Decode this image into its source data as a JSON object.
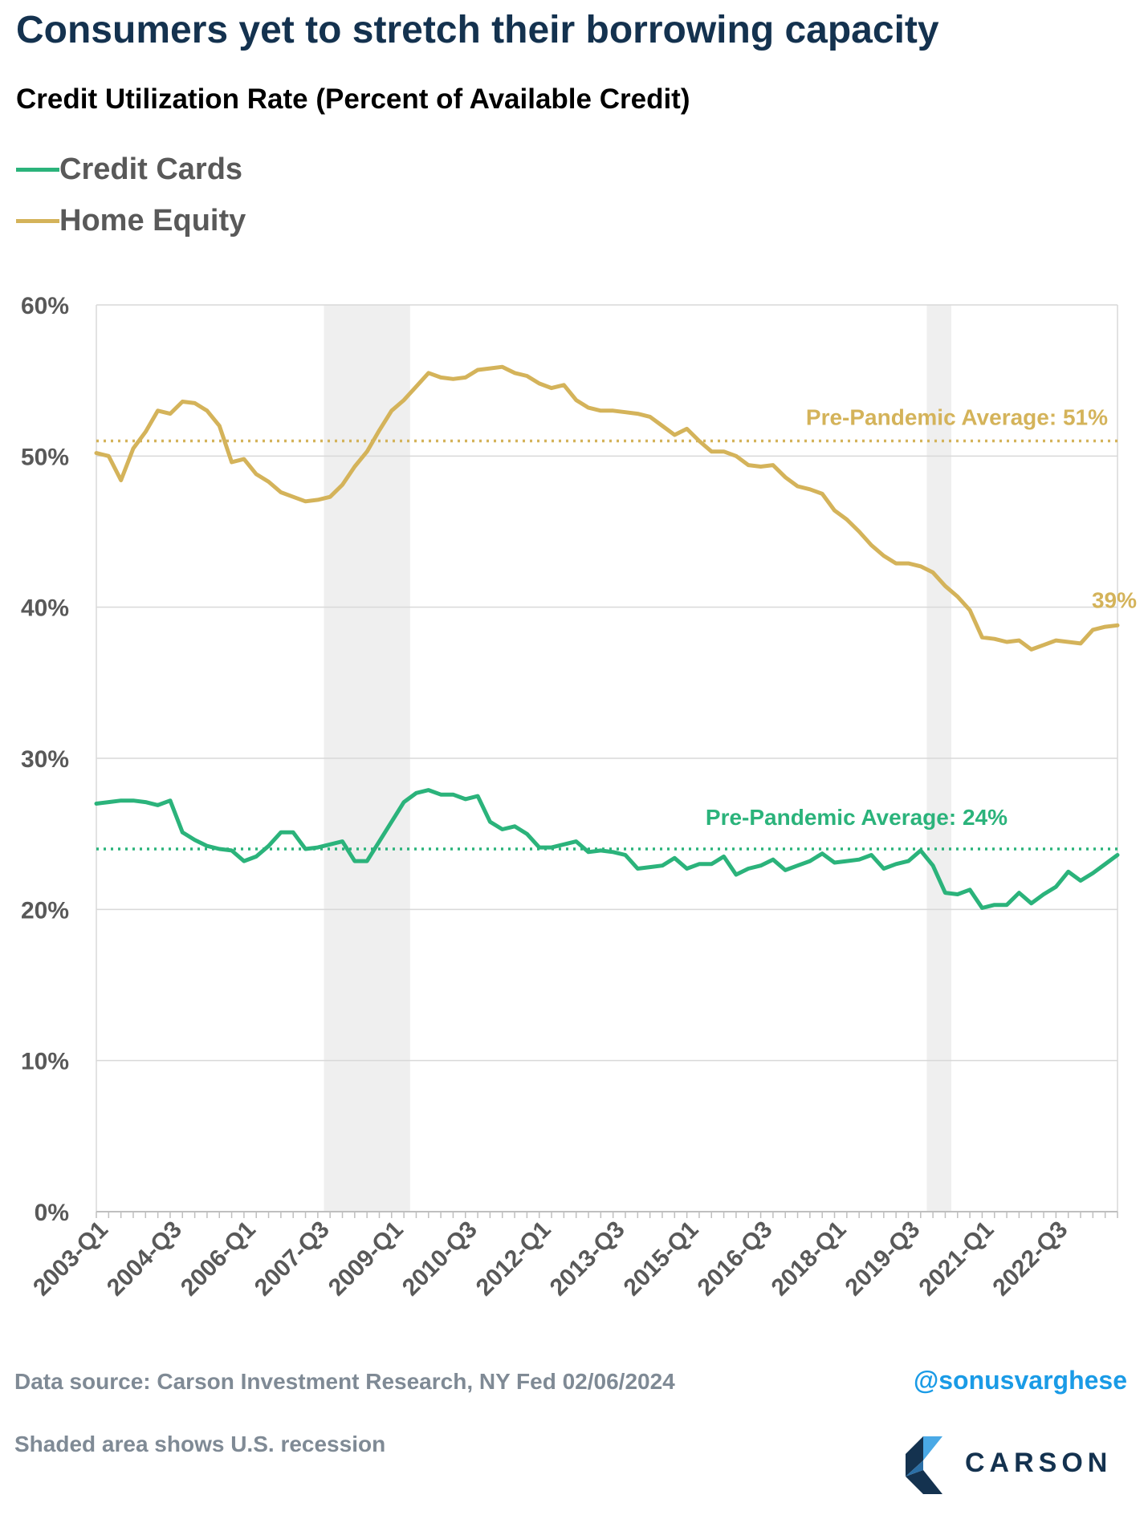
{
  "title": "Consumers yet to stretch their borrowing capacity",
  "subtitle": "Credit Utilization Rate (Percent of Available Credit)",
  "legend": [
    {
      "label": "Credit Cards",
      "color": "#2bb37b"
    },
    {
      "label": "Home Equity",
      "color": "#d4b35a"
    }
  ],
  "footer": {
    "source": "Data source: Carson Investment Research, NY Fed   02/06/2024",
    "note": "Shaded area shows U.S. recession",
    "handle": "@sonusvarghese",
    "logo_text": "CARSON"
  },
  "chart_data": {
    "type": "line",
    "x_start": "2003-Q1",
    "x_end": "2023-Q4",
    "x_tick_labels": [
      "2003-Q1",
      "2004-Q3",
      "2006-Q1",
      "2007-Q3",
      "2009-Q1",
      "2010-Q3",
      "2012-Q1",
      "2013-Q3",
      "2015-Q1",
      "2016-Q3",
      "2018-Q1",
      "2019-Q3",
      "2021-Q1",
      "2022-Q3"
    ],
    "y_ticks": [
      0,
      10,
      20,
      30,
      40,
      50,
      60
    ],
    "y_tick_labels": [
      "0%",
      "10%",
      "20%",
      "30%",
      "40%",
      "50%",
      "60%"
    ],
    "ylim": [
      0,
      60
    ],
    "grid": "horizontal",
    "recessions": [
      {
        "start": "2007-Q4",
        "end": "2009-Q2"
      },
      {
        "start": "2020-Q1",
        "end": "2020-Q2"
      }
    ],
    "series": [
      {
        "name": "Credit Cards",
        "color": "#2bb37b",
        "values": [
          27.0,
          27.1,
          27.2,
          27.2,
          27.1,
          26.9,
          27.2,
          25.1,
          24.6,
          24.2,
          24.0,
          23.9,
          23.2,
          23.5,
          24.2,
          25.1,
          25.1,
          24.0,
          24.1,
          24.3,
          24.5,
          23.2,
          23.2,
          24.5,
          25.8,
          27.1,
          27.7,
          27.9,
          27.6,
          27.6,
          27.3,
          27.5,
          25.8,
          25.3,
          25.5,
          25.0,
          24.1,
          24.1,
          24.3,
          24.5,
          23.8,
          23.9,
          23.8,
          23.6,
          22.7,
          22.8,
          22.9,
          23.4,
          22.7,
          23.0,
          23.0,
          23.5,
          22.3,
          22.7,
          22.9,
          23.3,
          22.6,
          22.9,
          23.2,
          23.7,
          23.1,
          23.2,
          23.3,
          23.6,
          22.7,
          23.0,
          23.2,
          23.9,
          22.9,
          21.1,
          21.0,
          21.3,
          20.1,
          20.3,
          20.3,
          21.1,
          20.4,
          21.0,
          21.5,
          22.5,
          21.9,
          22.4,
          23.0,
          23.6
        ]
      },
      {
        "name": "Home Equity",
        "color": "#d4b35a",
        "values": [
          50.2,
          50.0,
          48.4,
          50.5,
          51.6,
          53.0,
          52.8,
          53.6,
          53.5,
          53.0,
          52.0,
          49.6,
          49.8,
          48.8,
          48.3,
          47.6,
          47.3,
          47.0,
          47.1,
          47.3,
          48.1,
          49.3,
          50.3,
          51.7,
          53.0,
          53.7,
          54.6,
          55.5,
          55.2,
          55.1,
          55.2,
          55.7,
          55.8,
          55.9,
          55.5,
          55.3,
          54.8,
          54.5,
          54.7,
          53.7,
          53.2,
          53.0,
          53.0,
          52.9,
          52.8,
          52.6,
          52.0,
          51.4,
          51.8,
          51.0,
          50.3,
          50.3,
          50.0,
          49.4,
          49.3,
          49.4,
          48.6,
          48.0,
          47.8,
          47.5,
          46.4,
          45.8,
          45.0,
          44.1,
          43.4,
          42.9,
          42.9,
          42.7,
          42.3,
          41.4,
          40.7,
          39.8,
          38.0,
          37.9,
          37.7,
          37.8,
          37.2,
          37.5,
          37.8,
          37.7,
          37.6,
          38.5,
          38.7,
          38.8
        ]
      }
    ],
    "reference_lines": [
      {
        "label": "Pre-Pandemic Average: 51%",
        "value": 51,
        "color": "#d4b35a"
      },
      {
        "label": "Pre-Pandemic Average: 24%",
        "value": 24,
        "color": "#2bb37b"
      }
    ],
    "end_label": {
      "series": "Home Equity",
      "text": "39%",
      "color": "#d4b35a"
    }
  }
}
